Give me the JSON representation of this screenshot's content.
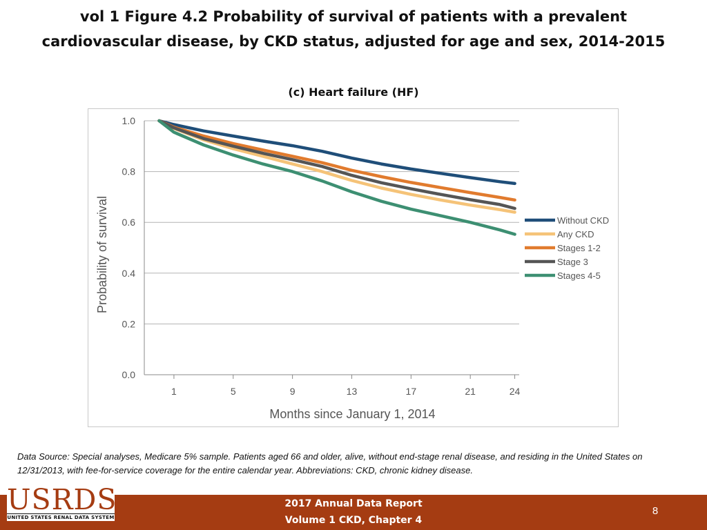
{
  "slide": {
    "title_line1": "vol 1 Figure 4.2 Probability of survival of patients with a prevalent",
    "title_line2": "cardiovascular disease, by CKD status, adjusted for age and sex, 2014-2015",
    "panel_title": "(c) Heart failure (HF)",
    "note": "Data Source: Special analyses, Medicare 5% sample. Patients aged 66 and older, alive, without end-stage renal disease, and residing in the United States on 12/31/2013, with fee-for-service coverage for the entire calendar year. Abbreviations: CKD, chronic kidney disease."
  },
  "footer": {
    "report_line1": "2017 Annual Data Report",
    "report_line2": "Volume 1 CKD, Chapter 4",
    "page_number": "8"
  },
  "logo": {
    "word": "USRDS",
    "subtitle": "UNITED STATES RENAL DATA SYSTEM"
  },
  "colors": {
    "gridline": "#b3b3b3",
    "axis": "#888888",
    "tick_text": "#555555",
    "footer": "#a53c12"
  },
  "chart_data": {
    "type": "line",
    "title": "(c) Heart failure (HF)",
    "xlabel": "Months since January 1, 2014",
    "ylabel": "Probability of survival",
    "xlim": [
      -1,
      24.3
    ],
    "ylim": [
      0,
      1
    ],
    "xticks": [
      1,
      5,
      9,
      13,
      17,
      21,
      24
    ],
    "yticks": [
      0.0,
      0.2,
      0.4,
      0.6,
      0.8,
      1.0
    ],
    "ytick_labels": [
      "0.0",
      "0.2",
      "0.4",
      "0.6",
      "0.8",
      "1.0"
    ],
    "grid": "horizontal",
    "legend_position": "right",
    "x": [
      0,
      1,
      3,
      5,
      7,
      9,
      11,
      13,
      15,
      17,
      19,
      21,
      23,
      24
    ],
    "series": [
      {
        "name": "Without CKD",
        "color": "#1f4e79",
        "values": [
          1.0,
          0.985,
          0.96,
          0.94,
          0.92,
          0.902,
          0.88,
          0.853,
          0.83,
          0.81,
          0.793,
          0.776,
          0.76,
          0.753
        ]
      },
      {
        "name": "Any CKD",
        "color": "#f5c378",
        "values": [
          1.0,
          0.97,
          0.925,
          0.89,
          0.86,
          0.83,
          0.8,
          0.765,
          0.735,
          0.71,
          0.688,
          0.668,
          0.65,
          0.64
        ]
      },
      {
        "name": "Stages 1-2",
        "color": "#e17b2e",
        "values": [
          1.0,
          0.975,
          0.94,
          0.91,
          0.885,
          0.86,
          0.835,
          0.805,
          0.78,
          0.757,
          0.737,
          0.717,
          0.698,
          0.688
        ]
      },
      {
        "name": "Stage 3",
        "color": "#555555",
        "values": [
          1.0,
          0.972,
          0.93,
          0.9,
          0.872,
          0.847,
          0.82,
          0.785,
          0.756,
          0.732,
          0.71,
          0.689,
          0.67,
          0.655
        ]
      },
      {
        "name": "Stages 4-5",
        "color": "#3d8f72",
        "values": [
          1.0,
          0.955,
          0.905,
          0.865,
          0.83,
          0.8,
          0.763,
          0.72,
          0.683,
          0.652,
          0.626,
          0.6,
          0.57,
          0.553
        ]
      }
    ]
  }
}
